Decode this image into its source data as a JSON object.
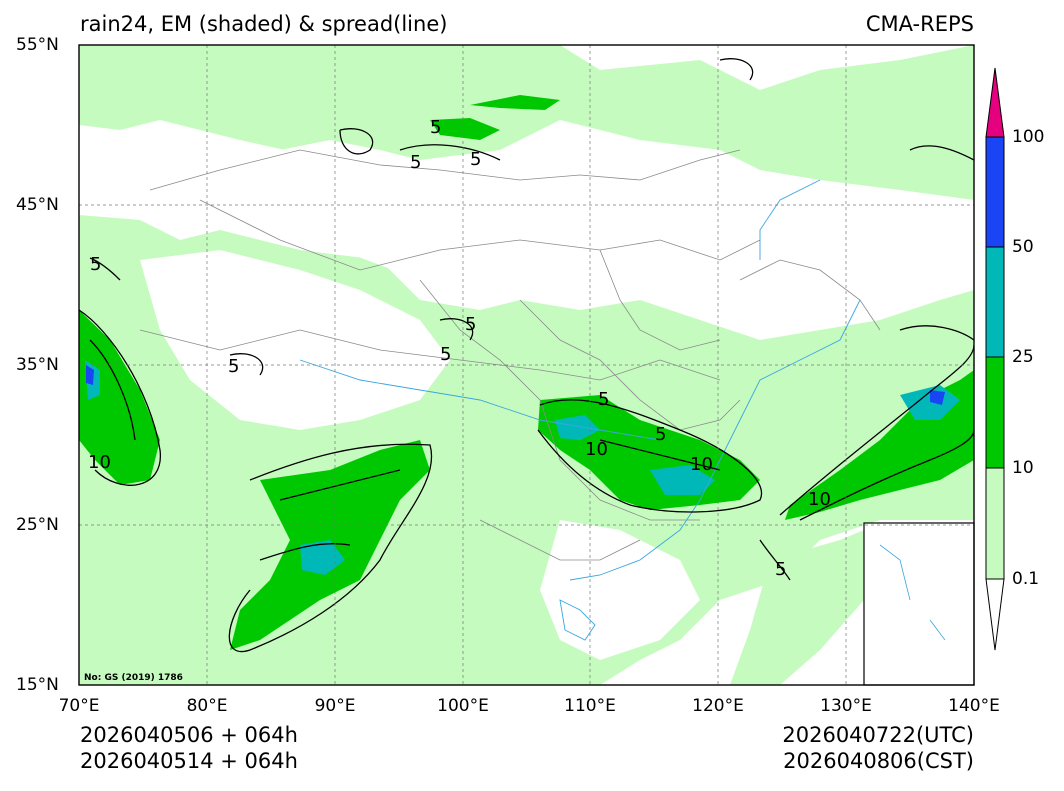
{
  "title": {
    "left": "rain24, EM (shaded) & spread(line)",
    "right": "CMA-REPS"
  },
  "map": {
    "lon_range": [
      70,
      140
    ],
    "lat_range": [
      15,
      55
    ],
    "lat_ticks": [
      "55°N",
      "45°N",
      "35°N",
      "25°N",
      "15°N"
    ],
    "lon_ticks": [
      "70°E",
      "80°E",
      "90°E",
      "100°E",
      "110°E",
      "120°E",
      "130°E",
      "140°E"
    ],
    "contour_labels": [
      "5",
      "5",
      "5",
      "5",
      "5",
      "5",
      "5",
      "5",
      "10",
      "10",
      "10",
      "5",
      "10",
      "5"
    ],
    "note": "No: GS (2019) 1786",
    "gridlines": true
  },
  "colorbar": {
    "labels": [
      "100",
      "50",
      "25",
      "10",
      "0.1"
    ],
    "colors": {
      "above_100": "#e4007f",
      "50_100": "#1a45f5",
      "25_50": "#00b8b8",
      "10_25": "#00c800",
      "0.1_10": "#c6fbc0",
      "below": "#ffffff"
    }
  },
  "footer": {
    "init_line1": "2026040506  +  064h",
    "init_line2": "2026040514  +  064h",
    "valid_utc": "2026040722(UTC)",
    "valid_cst": "2026040806(CST)"
  }
}
